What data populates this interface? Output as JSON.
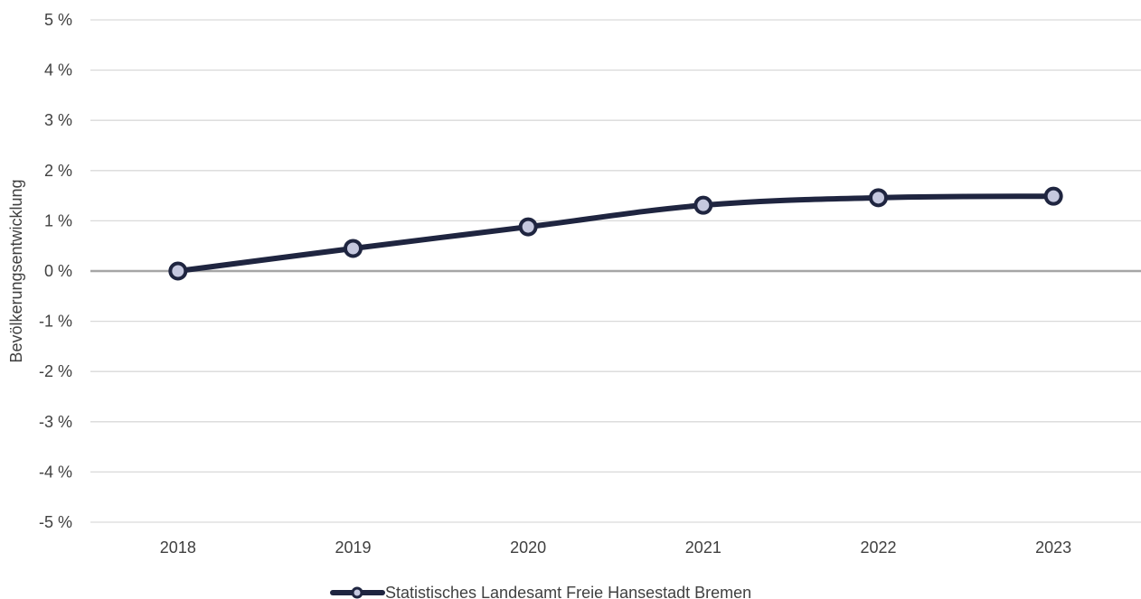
{
  "chart_data": {
    "type": "line",
    "categories": [
      "2018",
      "2019",
      "2020",
      "2021",
      "2022",
      "2023"
    ],
    "series": [
      {
        "name": "Statistisches Landesamt Freie Hansestadt Bremen",
        "values": [
          0.0,
          0.45,
          0.88,
          1.31,
          1.46,
          1.49
        ],
        "color": "#1f2540",
        "marker_fill": "#c5c8df"
      }
    ],
    "ylabel": "Bevölkerungsentwicklung",
    "xlabel": "",
    "ylim": [
      -5,
      5
    ],
    "y_ticks": [
      5,
      4,
      3,
      2,
      1,
      0,
      -1,
      -2,
      -3,
      -4,
      -5
    ],
    "y_tick_labels": [
      "5 %",
      "4 %",
      "3 %",
      "2 %",
      "1 %",
      "0 %",
      "-1 %",
      "-2 %",
      "-3 %",
      "-4 %",
      "-5 %"
    ],
    "grid": true,
    "legend_position": "bottom-center",
    "colors": {
      "grid": "#d9d9d9",
      "zero_line": "#a6a6a6",
      "text": "#404040"
    }
  }
}
